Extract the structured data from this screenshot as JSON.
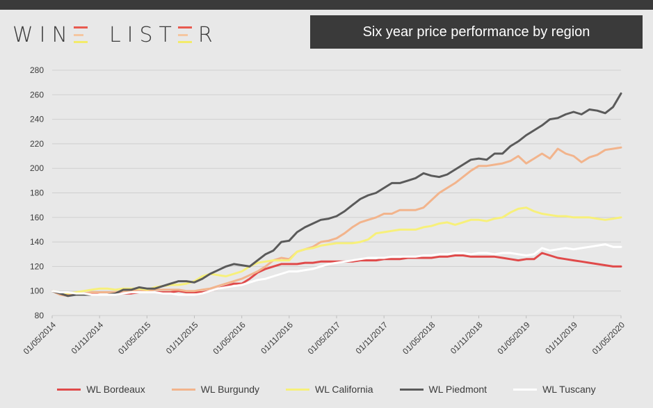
{
  "brand": {
    "letters_left": "WIN",
    "letters_mid": "LIST",
    "letters_right": "R",
    "e_mark_colors": [
      "#e85a4f",
      "#f5c6a0",
      "#f3eb6a"
    ]
  },
  "header": {
    "title": "Six year price performance by region"
  },
  "chart_data": {
    "type": "line",
    "title": "Six year price performance by region",
    "xlabel": "",
    "ylabel": "",
    "ylim": [
      80,
      280
    ],
    "yticks": [
      80,
      100,
      120,
      140,
      160,
      180,
      200,
      220,
      240,
      260,
      280
    ],
    "xlim": [
      "01/05/2014",
      "01/05/2020"
    ],
    "xticks": [
      "01/05/2014",
      "01/11/2014",
      "01/05/2015",
      "01/11/2015",
      "01/05/2016",
      "01/11/2016",
      "01/05/2017",
      "01/11/2017",
      "01/05/2018",
      "01/11/2018",
      "01/05/2019",
      "01/11/2019",
      "01/05/2020"
    ],
    "grid": true,
    "legend_position": "bottom",
    "x": [
      "2014-05",
      "2014-06",
      "2014-07",
      "2014-08",
      "2014-09",
      "2014-10",
      "2014-11",
      "2014-12",
      "2015-01",
      "2015-02",
      "2015-03",
      "2015-04",
      "2015-05",
      "2015-06",
      "2015-07",
      "2015-08",
      "2015-09",
      "2015-10",
      "2015-11",
      "2015-12",
      "2016-01",
      "2016-02",
      "2016-03",
      "2016-04",
      "2016-05",
      "2016-06",
      "2016-07",
      "2016-08",
      "2016-09",
      "2016-10",
      "2016-11",
      "2016-12",
      "2017-01",
      "2017-02",
      "2017-03",
      "2017-04",
      "2017-05",
      "2017-06",
      "2017-07",
      "2017-08",
      "2017-09",
      "2017-10",
      "2017-11",
      "2017-12",
      "2018-01",
      "2018-02",
      "2018-03",
      "2018-04",
      "2018-05",
      "2018-06",
      "2018-07",
      "2018-08",
      "2018-09",
      "2018-10",
      "2018-11",
      "2018-12",
      "2019-01",
      "2019-02",
      "2019-03",
      "2019-04",
      "2019-05",
      "2019-06",
      "2019-07",
      "2019-08",
      "2019-09",
      "2019-10",
      "2019-11",
      "2019-12",
      "2020-01",
      "2020-02",
      "2020-03",
      "2020-04",
      "2020-05"
    ],
    "series": [
      {
        "name": "WL Bordeaux",
        "color": "#e04a4a",
        "values": [
          100,
          98,
          97,
          98,
          97,
          98,
          97,
          97,
          98,
          98,
          98,
          99,
          99,
          99,
          99,
          99,
          100,
          99,
          99,
          99,
          100,
          102,
          104,
          106,
          106,
          110,
          115,
          118,
          120,
          122,
          122,
          122,
          123,
          123,
          124,
          124,
          124,
          124,
          124,
          125,
          125,
          125,
          126,
          126,
          126,
          127,
          127,
          127,
          127,
          128,
          128,
          129,
          129,
          128,
          128,
          128,
          128,
          127,
          126,
          125,
          126,
          126,
          131,
          129,
          127,
          126,
          125,
          124,
          123,
          122,
          121,
          120,
          120
        ]
      },
      {
        "name": "WL Burgundy",
        "color": "#f2b48c",
        "values": [
          100,
          97,
          96,
          98,
          98,
          99,
          99,
          99,
          99,
          100,
          100,
          101,
          100,
          101,
          101,
          101,
          101,
          100,
          100,
          101,
          102,
          104,
          106,
          108,
          110,
          113,
          116,
          120,
          125,
          127,
          126,
          132,
          134,
          136,
          140,
          141,
          143,
          147,
          152,
          156,
          158,
          160,
          163,
          163,
          166,
          166,
          166,
          168,
          174,
          180,
          184,
          188,
          193,
          198,
          202,
          202,
          203,
          204,
          206,
          210,
          204,
          208,
          212,
          208,
          216,
          212,
          210,
          205,
          209,
          211,
          215,
          216,
          217
        ]
      },
      {
        "name": "WL California",
        "color": "#f7f07a",
        "values": [
          100,
          99,
          98,
          99,
          100,
          101,
          102,
          102,
          101,
          102,
          102,
          102,
          101,
          103,
          104,
          105,
          105,
          106,
          108,
          112,
          114,
          113,
          112,
          114,
          116,
          120,
          123,
          124,
          125,
          125,
          125,
          132,
          134,
          135,
          137,
          138,
          139,
          139,
          139,
          140,
          142,
          147,
          148,
          149,
          150,
          150,
          150,
          152,
          153,
          155,
          156,
          154,
          156,
          158,
          158,
          157,
          159,
          160,
          164,
          167,
          168,
          165,
          163,
          162,
          161,
          161,
          160,
          160,
          160,
          159,
          158,
          159,
          160
        ]
      },
      {
        "name": "WL Piedmont",
        "color": "#5a5a5a",
        "values": [
          100,
          98,
          96,
          97,
          97,
          97,
          97,
          97,
          98,
          101,
          101,
          103,
          102,
          102,
          104,
          106,
          108,
          108,
          107,
          110,
          114,
          117,
          120,
          122,
          121,
          120,
          125,
          130,
          133,
          140,
          141,
          148,
          152,
          155,
          158,
          159,
          161,
          165,
          170,
          175,
          178,
          180,
          184,
          188,
          188,
          190,
          192,
          196,
          194,
          193,
          195,
          199,
          203,
          207,
          208,
          207,
          212,
          212,
          218,
          222,
          227,
          231,
          235,
          240,
          241,
          244,
          246,
          244,
          248,
          247,
          245,
          250,
          261
        ]
      },
      {
        "name": "WL Tuscany",
        "color": "#ffffff",
        "values": [
          100,
          99,
          99,
          98,
          98,
          97,
          97,
          97,
          97,
          98,
          99,
          99,
          99,
          99,
          98,
          98,
          97,
          97,
          97,
          98,
          100,
          102,
          103,
          104,
          105,
          107,
          109,
          110,
          112,
          114,
          116,
          116,
          117,
          118,
          120,
          122,
          123,
          124,
          125,
          126,
          127,
          127,
          127,
          128,
          128,
          128,
          128,
          129,
          129,
          130,
          130,
          131,
          131,
          130,
          131,
          131,
          130,
          131,
          131,
          130,
          129,
          130,
          135,
          133,
          134,
          135,
          134,
          135,
          136,
          137,
          138,
          136,
          136
        ]
      }
    ]
  }
}
